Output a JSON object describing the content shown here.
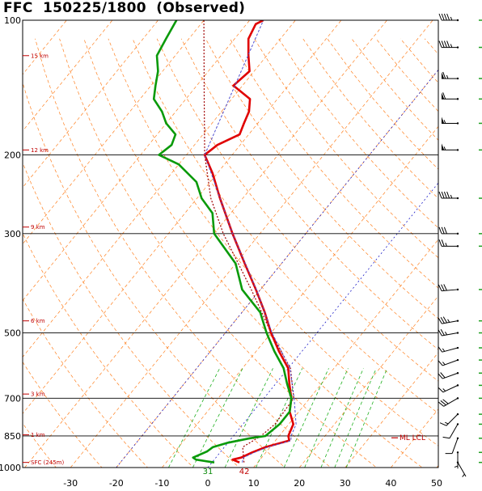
{
  "title": "FFC  150225/1800  (Observed)",
  "chart_data": {
    "type": "skew-t",
    "station": "FFC",
    "datetime": "150225/1800",
    "status": "(Observed)",
    "pressure_ticks": [
      100,
      200,
      300,
      500,
      700,
      850,
      1000
    ],
    "temperature_ticks": [
      -30,
      -20,
      -10,
      0,
      10,
      20,
      30,
      40,
      50
    ],
    "temperature_range": [
      -40,
      50
    ],
    "pressure_range": [
      1000,
      100
    ],
    "height_labels": [
      "15 km",
      "12 km",
      "9 km",
      "6 km",
      "3 km",
      "1 km",
      "SFC (245m)"
    ],
    "lcl_label": "ML LCL",
    "surface_values": [
      "31",
      "42"
    ],
    "temperature_profile": [
      {
        "p": 974,
        "t": 6
      },
      {
        "p": 960,
        "t": 4
      },
      {
        "p": 950,
        "t": 5.5
      },
      {
        "p": 925,
        "t": 7
      },
      {
        "p": 900,
        "t": 9
      },
      {
        "p": 870,
        "t": 13
      },
      {
        "p": 850,
        "t": 12
      },
      {
        "p": 800,
        "t": 11
      },
      {
        "p": 750,
        "t": 8
      },
      {
        "p": 700,
        "t": 6
      },
      {
        "p": 650,
        "t": 3
      },
      {
        "p": 600,
        "t": 0
      },
      {
        "p": 550,
        "t": -5
      },
      {
        "p": 500,
        "t": -10
      },
      {
        "p": 450,
        "t": -15
      },
      {
        "p": 400,
        "t": -21
      },
      {
        "p": 350,
        "t": -28
      },
      {
        "p": 300,
        "t": -36
      },
      {
        "p": 250,
        "t": -45
      },
      {
        "p": 220,
        "t": -51
      },
      {
        "p": 200,
        "t": -56
      },
      {
        "p": 190,
        "t": -55
      },
      {
        "p": 180,
        "t": -52
      },
      {
        "p": 170,
        "t": -53
      },
      {
        "p": 160,
        "t": -54
      },
      {
        "p": 150,
        "t": -56
      },
      {
        "p": 140,
        "t": -62
      },
      {
        "p": 130,
        "t": -61
      },
      {
        "p": 120,
        "t": -64
      },
      {
        "p": 110,
        "t": -67
      },
      {
        "p": 102,
        "t": -68
      },
      {
        "p": 100,
        "t": -67
      }
    ],
    "virtual_temperature_profile": [
      {
        "p": 974,
        "t": 6.6
      },
      {
        "p": 950,
        "t": 6
      },
      {
        "p": 925,
        "t": 7.5
      },
      {
        "p": 900,
        "t": 9.5
      },
      {
        "p": 870,
        "t": 13.4
      },
      {
        "p": 850,
        "t": 12.6
      },
      {
        "p": 800,
        "t": 11.6
      },
      {
        "p": 700,
        "t": 6.6
      },
      {
        "p": 600,
        "t": 0.4
      },
      {
        "p": 500,
        "t": -9.8
      },
      {
        "p": 400,
        "t": -20.9
      },
      {
        "p": 300,
        "t": -36
      },
      {
        "p": 200,
        "t": -56
      },
      {
        "p": 100,
        "t": -67
      }
    ],
    "dewpoint_profile": [
      {
        "p": 974,
        "t": 0.5
      },
      {
        "p": 960,
        "t": -4
      },
      {
        "p": 950,
        "t": -5
      },
      {
        "p": 920,
        "t": -3
      },
      {
        "p": 900,
        "t": -2.5
      },
      {
        "p": 880,
        "t": 0
      },
      {
        "p": 860,
        "t": 4
      },
      {
        "p": 850,
        "t": 7
      },
      {
        "p": 800,
        "t": 8
      },
      {
        "p": 750,
        "t": 8
      },
      {
        "p": 700,
        "t": 6
      },
      {
        "p": 650,
        "t": 2.5
      },
      {
        "p": 600,
        "t": -1
      },
      {
        "p": 550,
        "t": -6
      },
      {
        "p": 500,
        "t": -11
      },
      {
        "p": 450,
        "t": -16
      },
      {
        "p": 400,
        "t": -24
      },
      {
        "p": 350,
        "t": -30
      },
      {
        "p": 300,
        "t": -40
      },
      {
        "p": 270,
        "t": -44
      },
      {
        "p": 250,
        "t": -49
      },
      {
        "p": 230,
        "t": -53
      },
      {
        "p": 210,
        "t": -60
      },
      {
        "p": 200,
        "t": -66
      },
      {
        "p": 190,
        "t": -65
      },
      {
        "p": 180,
        "t": -66
      },
      {
        "p": 170,
        "t": -70
      },
      {
        "p": 160,
        "t": -73
      },
      {
        "p": 150,
        "t": -77
      },
      {
        "p": 140,
        "t": -79
      },
      {
        "p": 130,
        "t": -81
      },
      {
        "p": 120,
        "t": -84
      },
      {
        "p": 110,
        "t": -85
      },
      {
        "p": 100,
        "t": -86
      }
    ],
    "parcel_profile": [
      {
        "p": 974,
        "t": 7
      },
      {
        "p": 900,
        "t": 4
      },
      {
        "p": 850,
        "t": 6
      },
      {
        "p": 800,
        "t": 7
      },
      {
        "p": 700,
        "t": 6.5
      },
      {
        "p": 600,
        "t": 0.5
      },
      {
        "p": 500,
        "t": -10
      },
      {
        "p": 400,
        "t": -22
      },
      {
        "p": 300,
        "t": -38
      },
      {
        "p": 250,
        "t": -47
      },
      {
        "p": 200,
        "t": -56
      },
      {
        "p": 150,
        "t": -66
      },
      {
        "p": 100,
        "t": -80
      }
    ],
    "wind_barbs": [
      {
        "p": 100,
        "dir": 270,
        "kt": 45
      },
      {
        "p": 115,
        "dir": 270,
        "kt": 45
      },
      {
        "p": 135,
        "dir": 270,
        "kt": 65
      },
      {
        "p": 150,
        "dir": 270,
        "kt": 60
      },
      {
        "p": 170,
        "dir": 270,
        "kt": 55
      },
      {
        "p": 195,
        "dir": 270,
        "kt": 55
      },
      {
        "p": 250,
        "dir": 270,
        "kt": 45
      },
      {
        "p": 300,
        "dir": 270,
        "kt": 30
      },
      {
        "p": 320,
        "dir": 270,
        "kt": 25
      },
      {
        "p": 400,
        "dir": 265,
        "kt": 30
      },
      {
        "p": 470,
        "dir": 260,
        "kt": 35
      },
      {
        "p": 500,
        "dir": 260,
        "kt": 25
      },
      {
        "p": 540,
        "dir": 255,
        "kt": 15
      },
      {
        "p": 575,
        "dir": 250,
        "kt": 15
      },
      {
        "p": 615,
        "dir": 250,
        "kt": 20
      },
      {
        "p": 655,
        "dir": 245,
        "kt": 15
      },
      {
        "p": 700,
        "dir": 240,
        "kt": 30
      },
      {
        "p": 760,
        "dir": 225,
        "kt": 15
      },
      {
        "p": 800,
        "dir": 210,
        "kt": 10
      },
      {
        "p": 860,
        "dir": 200,
        "kt": 10
      },
      {
        "p": 925,
        "dir": 180,
        "kt": 5
      },
      {
        "p": 974,
        "dir": 150,
        "kt": 5
      }
    ],
    "colors": {
      "temperature": "#e00000",
      "dewpoint": "#0a9a0a",
      "virtual_temperature": "#5050d0",
      "isobars": "#000000",
      "isotherms": "#ff8020",
      "dry_adiabats": "#ff8020",
      "mixing_ratio": "#20b020",
      "freezing_isotherm": "#0000c0"
    }
  }
}
